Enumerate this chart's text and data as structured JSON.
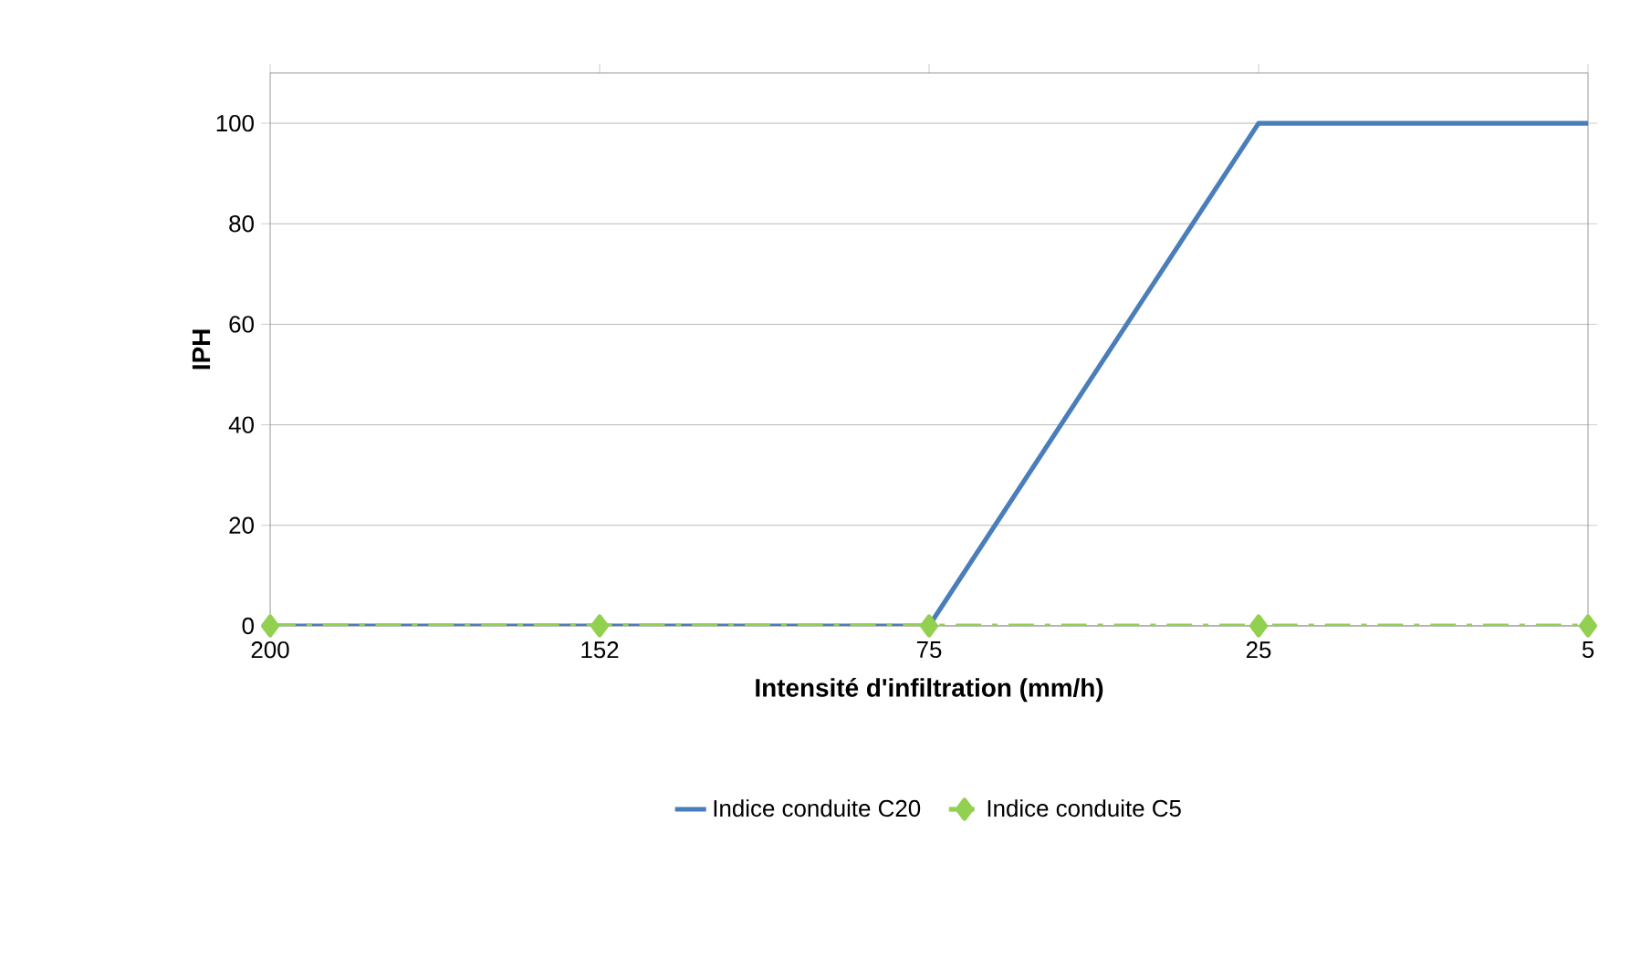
{
  "chart_data": {
    "type": "line",
    "xlabel": "Intensité d'infiltration (mm/h)",
    "ylabel": "IPH",
    "categories": [
      "200",
      "152",
      "75",
      "25",
      "5"
    ],
    "series": [
      {
        "name": "Indice conduite C20",
        "color": "#4a7ebb",
        "values": [
          0,
          0,
          0,
          100,
          100
        ],
        "marker": "none",
        "line_style": "solid"
      },
      {
        "name": "Indice conduite C5",
        "color": "#92d050",
        "values": [
          0,
          0,
          0,
          0,
          0
        ],
        "marker": "diamond",
        "line_style": "dashed"
      }
    ],
    "ylim": [
      0,
      110
    ],
    "yticks": [
      0,
      20,
      40,
      60,
      80,
      100
    ],
    "grid": "y",
    "legend": "bottom"
  }
}
